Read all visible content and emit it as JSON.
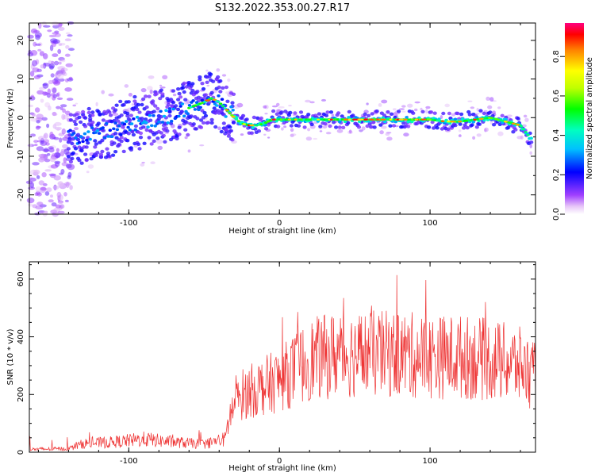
{
  "page_title": "S132.2022.353.00.27.R17",
  "chart_data": [
    {
      "type": "heatmap",
      "xlabel": "Height of straight line (km)",
      "ylabel": "Frequency (Hz)",
      "xlim": [
        -166,
        170
      ],
      "ylim": [
        -25,
        24.5
      ],
      "xticks": [
        -100,
        0,
        100
      ],
      "yticks": [
        -20,
        -10,
        0,
        10,
        20
      ],
      "colorbar": {
        "label": "Normalized spectral amplitude",
        "range": [
          0.0,
          0.97
        ],
        "ticks": [
          0.0,
          0.2,
          0.4,
          0.6,
          0.8
        ],
        "tick_labels": [
          "0.0",
          "0.2",
          "0.4",
          "0.6",
          "0.8"
        ],
        "colormap": "hsv"
      },
      "ridge_center_frequency": {
        "x": [
          -140,
          -130,
          -120,
          -110,
          -100,
          -90,
          -80,
          -70,
          -60,
          -50,
          -45,
          -40,
          -35,
          -30,
          -25,
          -20,
          -15,
          -10,
          -5,
          0,
          10,
          20,
          30,
          40,
          50,
          60,
          70,
          80,
          90,
          100,
          110,
          120,
          130,
          140,
          150,
          160,
          168
        ],
        "y": [
          -5,
          -5,
          -4,
          -3,
          -2,
          -1,
          0,
          1,
          2.5,
          4,
          5,
          4,
          2,
          0,
          -1.5,
          -2,
          -2,
          -1.5,
          -0.5,
          -0.5,
          -0.5,
          -0.5,
          -0.5,
          -0.5,
          -0.5,
          -0.5,
          -0.5,
          -0.5,
          -0.5,
          -0.5,
          -1,
          -1,
          -0.5,
          0,
          -1,
          -2,
          -6
        ]
      }
    },
    {
      "type": "line",
      "xlabel": "Height of straight line (km)",
      "ylabel": "SNR (10 * v/v)",
      "xlim": [
        -166,
        170
      ],
      "ylim": [
        0,
        660
      ],
      "xticks": [
        -100,
        0,
        100
      ],
      "yticks": [
        0,
        200,
        400,
        600
      ],
      "line_color": "#ee3333",
      "envelope": {
        "x": [
          -166,
          -140,
          -130,
          -110,
          -90,
          -70,
          -50,
          -36,
          -33,
          -25,
          -15,
          0,
          20,
          40,
          60,
          80,
          100,
          120,
          140,
          160,
          170
        ],
        "y": [
          10,
          12,
          30,
          35,
          45,
          35,
          28,
          45,
          130,
          200,
          220,
          250,
          320,
          340,
          340,
          340,
          330,
          330,
          320,
          300,
          260
        ]
      }
    }
  ]
}
